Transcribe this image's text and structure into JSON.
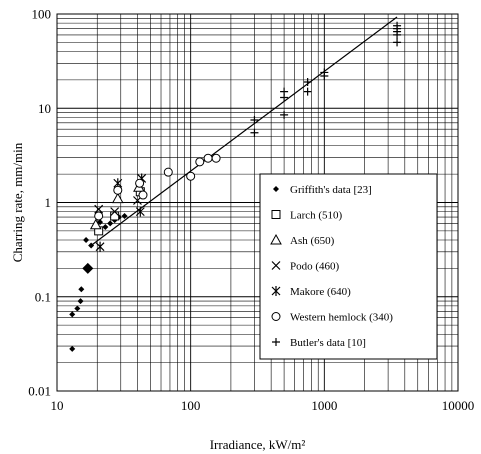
{
  "chart_data": {
    "type": "scatter",
    "title": "",
    "xlabel": "Irradiance, kW/m²",
    "ylabel": "Charring rate, mm/min",
    "xscale": "log",
    "yscale": "log",
    "xlim": [
      10,
      10000
    ],
    "ylim": [
      0.01,
      100
    ],
    "x_ticks": [
      "10",
      "100",
      "1000",
      "10000"
    ],
    "y_ticks": [
      "0.01",
      "0.1",
      "1",
      "10",
      "100"
    ],
    "grid": "major and minor",
    "legend_position": "lower-right",
    "series": [
      {
        "name": "Griffith's data [23]",
        "marker": "small-diamond",
        "points": [
          [
            13,
            0.028
          ],
          [
            13,
            0.065
          ],
          [
            14.2,
            0.075
          ],
          [
            15,
            0.09
          ],
          [
            15.2,
            0.12
          ],
          [
            16.5,
            0.4
          ],
          [
            18,
            0.35
          ],
          [
            20,
            0.5
          ],
          [
            21,
            0.62
          ],
          [
            23,
            0.55
          ],
          [
            25,
            0.6
          ],
          [
            27,
            0.65
          ],
          [
            29,
            0.7
          ],
          [
            32,
            0.72
          ]
        ]
      },
      {
        "name": "",
        "marker": "large-diamond",
        "points": [
          [
            17,
            0.2
          ]
        ]
      },
      {
        "name": "Larch (510)",
        "marker": "square",
        "points": [
          [
            20.5,
            0.5
          ],
          [
            27,
            0.72
          ],
          [
            42,
            1.3
          ]
        ]
      },
      {
        "name": "Ash (650)",
        "marker": "triangle",
        "points": [
          [
            19.5,
            0.58
          ],
          [
            28.5,
            1.1
          ],
          [
            41,
            1.45
          ]
        ]
      },
      {
        "name": "Podo (460)",
        "marker": "x",
        "points": [
          [
            20.5,
            0.85
          ],
          [
            27,
            0.8
          ],
          [
            40,
            1.05
          ]
        ]
      },
      {
        "name": "Makore (640)",
        "marker": "asterisk",
        "points": [
          [
            21,
            0.34
          ],
          [
            28.5,
            1.6
          ],
          [
            42,
            0.8
          ],
          [
            43,
            1.8
          ]
        ]
      },
      {
        "name": "Western hemlock (340)",
        "marker": "circle",
        "points": [
          [
            20.5,
            0.72
          ],
          [
            28.5,
            1.35
          ],
          [
            41.5,
            1.6
          ],
          [
            44,
            1.2
          ],
          [
            68,
            2.1
          ],
          [
            100,
            1.9
          ],
          [
            117,
            2.7
          ],
          [
            135,
            2.95
          ],
          [
            155,
            2.95
          ]
        ]
      },
      {
        "name": "Butler's data [10]",
        "marker": "plus",
        "points": [
          [
            300,
            5.5
          ],
          [
            300,
            7.5
          ],
          [
            500,
            8.5
          ],
          [
            500,
            13
          ],
          [
            500,
            15
          ],
          [
            750,
            15
          ],
          [
            750,
            19
          ],
          [
            1000,
            22
          ],
          [
            1000,
            24
          ],
          [
            3500,
            50
          ],
          [
            3500,
            60
          ],
          [
            3500,
            65
          ],
          [
            3500,
            70
          ],
          [
            3500,
            75
          ]
        ]
      }
    ],
    "fit_line": [
      [
        18,
        0.35
      ],
      [
        3500,
        93
      ]
    ]
  }
}
